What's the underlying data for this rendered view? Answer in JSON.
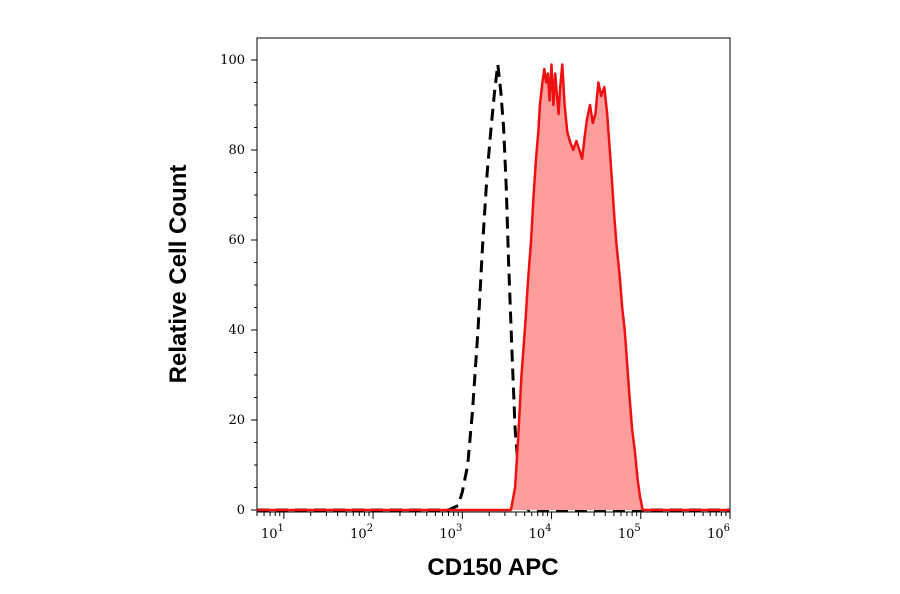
{
  "chart_data": {
    "type": "area",
    "xlabel": "CD150 APC",
    "ylabel": "Relative Cell Count",
    "xscale": "log",
    "xlim": [
      5,
      1000000
    ],
    "ylim": [
      0,
      100
    ],
    "grid": false,
    "x_ticks": [
      {
        "value": 10,
        "base": "10",
        "exp": "1"
      },
      {
        "value": 100,
        "base": "10",
        "exp": "2"
      },
      {
        "value": 1000,
        "base": "10",
        "exp": "3"
      },
      {
        "value": 10000,
        "base": "10",
        "exp": "4"
      },
      {
        "value": 100000,
        "base": "10",
        "exp": "5"
      },
      {
        "value": 1000000,
        "base": "10",
        "exp": "6"
      }
    ],
    "y_ticks": [
      0,
      20,
      40,
      60,
      80,
      100
    ],
    "series": [
      {
        "style": "dashed",
        "color": "#000000",
        "fill": "none",
        "points": [
          [
            5,
            0
          ],
          [
            700,
            0
          ],
          [
            900,
            1
          ],
          [
            1000,
            4
          ],
          [
            1150,
            10
          ],
          [
            1300,
            22
          ],
          [
            1500,
            40
          ],
          [
            1700,
            60
          ],
          [
            1900,
            75
          ],
          [
            2100,
            85
          ],
          [
            2300,
            93
          ],
          [
            2500,
            99
          ],
          [
            2700,
            93
          ],
          [
            2900,
            85
          ],
          [
            3100,
            72
          ],
          [
            3300,
            55
          ],
          [
            3600,
            35
          ],
          [
            3900,
            18
          ],
          [
            4300,
            8
          ],
          [
            4800,
            2
          ],
          [
            5500,
            0
          ],
          [
            1000000,
            0
          ]
        ]
      },
      {
        "style": "solid",
        "color": "#ee1111",
        "fill": "#ff9c9c",
        "points": [
          [
            5,
            0
          ],
          [
            3500,
            0
          ],
          [
            3900,
            5
          ],
          [
            4200,
            15
          ],
          [
            4600,
            30
          ],
          [
            5100,
            42
          ],
          [
            5400,
            50
          ],
          [
            5900,
            60
          ],
          [
            6300,
            70
          ],
          [
            6700,
            78
          ],
          [
            7100,
            84
          ],
          [
            7400,
            90
          ],
          [
            7900,
            95
          ],
          [
            8300,
            98
          ],
          [
            8700,
            95
          ],
          [
            9100,
            97
          ],
          [
            9500,
            91
          ],
          [
            10000,
            99
          ],
          [
            10500,
            90
          ],
          [
            11000,
            97
          ],
          [
            11500,
            92
          ],
          [
            12000,
            88
          ],
          [
            12500,
            94
          ],
          [
            13200,
            99
          ],
          [
            14000,
            90
          ],
          [
            15000,
            84
          ],
          [
            16000,
            82
          ],
          [
            17500,
            80
          ],
          [
            19000,
            82
          ],
          [
            20500,
            80
          ],
          [
            22000,
            78
          ],
          [
            23500,
            83
          ],
          [
            25000,
            87
          ],
          [
            27000,
            90
          ],
          [
            29000,
            86
          ],
          [
            31000,
            88
          ],
          [
            33500,
            95
          ],
          [
            36000,
            92
          ],
          [
            39000,
            94
          ],
          [
            42000,
            88
          ],
          [
            45000,
            80
          ],
          [
            48000,
            72
          ],
          [
            51000,
            64
          ],
          [
            54000,
            58
          ],
          [
            58000,
            52
          ],
          [
            62000,
            45
          ],
          [
            66000,
            40
          ],
          [
            70000,
            33
          ],
          [
            75000,
            25
          ],
          [
            80000,
            18
          ],
          [
            86000,
            13
          ],
          [
            92000,
            7
          ],
          [
            98000,
            3
          ],
          [
            105000,
            0
          ],
          [
            1000000,
            0
          ]
        ]
      }
    ]
  }
}
